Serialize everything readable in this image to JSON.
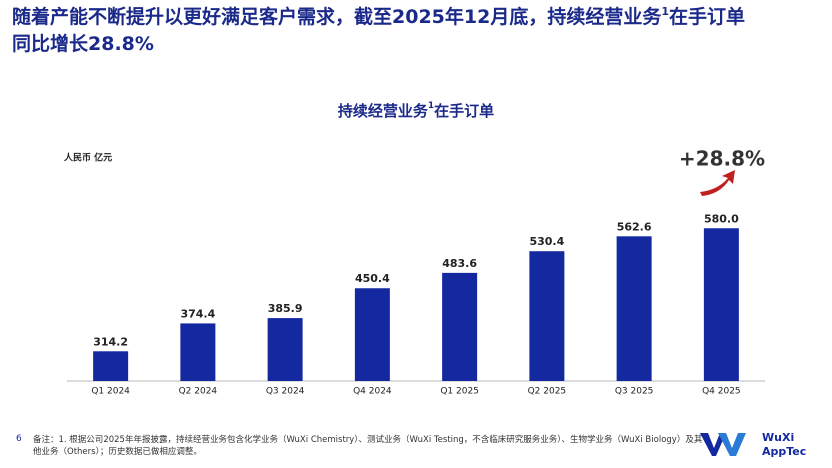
{
  "header": {
    "title": [
      "随着产能不断提升以更好满足客户需求，截至2025年12月底，持续经营业务",
      "1",
      "在手订单",
      "同比增长28.8%"
    ]
  },
  "chart_data": {
    "type": "bar",
    "title": [
      "持续经营业务",
      "1",
      "在手订单"
    ],
    "unit": "人民币 亿元",
    "annotation": "+28.8%",
    "categories": [
      "Q1 2024",
      "Q2 2024",
      "Q3 2024",
      "Q4 2024",
      "Q1 2025",
      "Q2 2025",
      "Q3 2025",
      "Q4 2025"
    ],
    "values": [
      314.2,
      374.4,
      385.9,
      450.4,
      483.6,
      530.4,
      562.6,
      580
    ],
    "value_labels": [
      "314.2",
      "374.4",
      "385.9",
      "450.4",
      "483.6",
      "530.4",
      "562.6",
      "580.0"
    ],
    "color": "#1428a0",
    "ylim": [
      250,
      600
    ]
  },
  "footer": {
    "page": "6",
    "note": "备注：1. 根据公司2025年年报披露，持续经营业务包含化学业务（WuXi Chemistry）、测试业务（WuXi Testing，不含临床研究服务业务）、生物学业务（WuXi Biology）及其他业务（Others）；历史数据已做相应调整。",
    "logo": [
      "WuXi",
      "AppTec"
    ]
  }
}
